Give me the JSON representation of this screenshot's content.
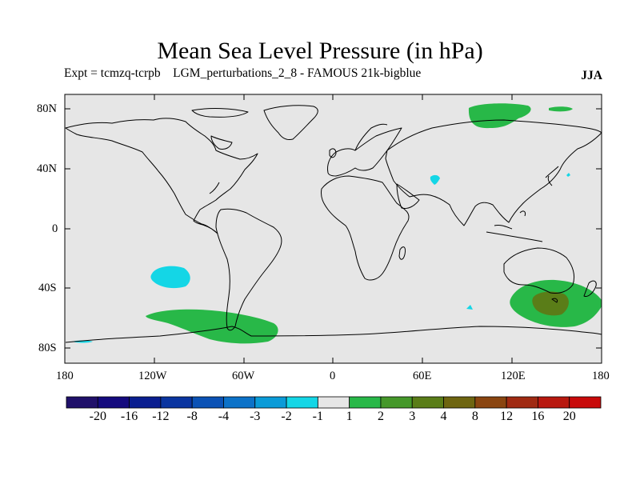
{
  "header": {
    "title": "Mean Sea Level Pressure (in hPa)",
    "subtitle": "Expt = tcmzq-tcrpb    LGM_perturbations_2_8 - FAMOUS 21k-bigblue",
    "season": "JJA"
  },
  "axes": {
    "y_ticks": [
      "80N",
      "40N",
      "0",
      "40S",
      "80S"
    ],
    "x_ticks": [
      "180",
      "120W",
      "60W",
      "0",
      "60E",
      "120E",
      "180"
    ]
  },
  "colorbar": {
    "labels": [
      "-20",
      "-16",
      "-12",
      "-8",
      "-4",
      "-3",
      "-2",
      "-1",
      "1",
      "2",
      "3",
      "4",
      "8",
      "12",
      "16",
      "20"
    ],
    "colors": [
      "#20106a",
      "#140a7e",
      "#0a1e90",
      "#0a35a0",
      "#0b52b5",
      "#0c72c8",
      "#0a9bd8",
      "#14d6e6",
      "#e6e6e6",
      "#28b848",
      "#45982a",
      "#5a7d18",
      "#6e6510",
      "#8a4510",
      "#a02a12",
      "#b8180f",
      "#c80a0a"
    ]
  },
  "colors": {
    "background": "#e6e6e6",
    "positive_1_2": "#28b848",
    "positive_3_4": "#5a7d18",
    "negative_1_2": "#14d6e6"
  }
}
